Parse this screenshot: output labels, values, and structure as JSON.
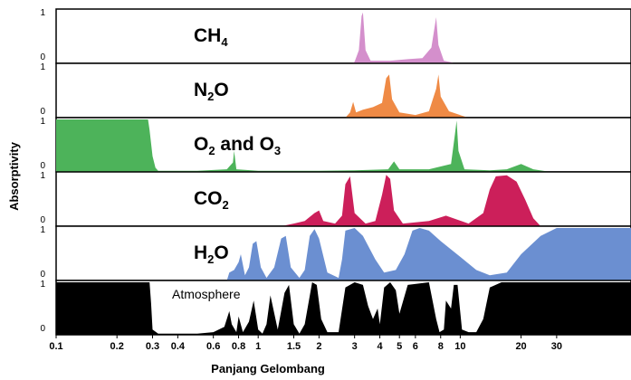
{
  "chart_data": {
    "type": "area",
    "xlabel": "Panjang Gelombang",
    "ylabel": "Absorptivity",
    "x_scale": "log",
    "xlim": [
      0.1,
      70
    ],
    "ylim": [
      0,
      1
    ],
    "x_ticks": [
      {
        "value": 0.1,
        "label": "0.1"
      },
      {
        "value": 0.2,
        "label": "0.2"
      },
      {
        "value": 0.3,
        "label": "0.3"
      },
      {
        "value": 0.4,
        "label": "0.4"
      },
      {
        "value": 0.6,
        "label": "0.6"
      },
      {
        "value": 0.8,
        "label": "0.8"
      },
      {
        "value": 1,
        "label": "1"
      },
      {
        "value": 1.5,
        "label": "1.5"
      },
      {
        "value": 2,
        "label": "2"
      },
      {
        "value": 3,
        "label": "3"
      },
      {
        "value": 4,
        "label": "4"
      },
      {
        "value": 5,
        "label": "5"
      },
      {
        "value": 6,
        "label": "6"
      },
      {
        "value": 8,
        "label": "8"
      },
      {
        "value": 10,
        "label": "10"
      },
      {
        "value": 20,
        "label": "20"
      },
      {
        "value": 30,
        "label": "30"
      }
    ],
    "y_ticks": [
      "0",
      "1"
    ],
    "series": [
      {
        "name": "CH4",
        "label_main": "CH",
        "label_sub": "4",
        "label_tail": "",
        "color": "#d48fcc",
        "points": [
          [
            2.9,
            0
          ],
          [
            3.0,
            0.03
          ],
          [
            3.15,
            0.25
          ],
          [
            3.25,
            0.9
          ],
          [
            3.3,
            0.97
          ],
          [
            3.4,
            0.25
          ],
          [
            3.6,
            0.05
          ],
          [
            4.5,
            0.05
          ],
          [
            5.5,
            0.08
          ],
          [
            6.5,
            0.1
          ],
          [
            7.2,
            0.3
          ],
          [
            7.6,
            0.88
          ],
          [
            7.8,
            0.35
          ],
          [
            8.3,
            0.05
          ],
          [
            9.0,
            0.02
          ],
          [
            9.5,
            0
          ]
        ]
      },
      {
        "name": "N2O",
        "label_main": "N",
        "label_sub": "2",
        "label_tail": "O",
        "color": "#ef8a45",
        "points": [
          [
            2.7,
            0
          ],
          [
            2.85,
            0.1
          ],
          [
            2.95,
            0.3
          ],
          [
            3.05,
            0.1
          ],
          [
            3.3,
            0.15
          ],
          [
            3.7,
            0.2
          ],
          [
            4.1,
            0.28
          ],
          [
            4.3,
            0.75
          ],
          [
            4.45,
            0.82
          ],
          [
            4.6,
            0.35
          ],
          [
            5.0,
            0.1
          ],
          [
            6.0,
            0.05
          ],
          [
            7.0,
            0.12
          ],
          [
            7.6,
            0.55
          ],
          [
            7.8,
            0.82
          ],
          [
            8.0,
            0.4
          ],
          [
            8.8,
            0.12
          ],
          [
            10.5,
            0.02
          ],
          [
            11,
            0
          ]
        ]
      },
      {
        "name": "O2 and O3",
        "label_main": "O",
        "label_sub": "2",
        "label_tail": " and O",
        "label_sub2": "3",
        "color": "#4db35a",
        "points": [
          [
            0.1,
            1
          ],
          [
            0.285,
            1
          ],
          [
            0.29,
            0.8
          ],
          [
            0.3,
            0.3
          ],
          [
            0.31,
            0.08
          ],
          [
            0.32,
            0.02
          ],
          [
            0.5,
            0.02
          ],
          [
            0.7,
            0.05
          ],
          [
            0.75,
            0.18
          ],
          [
            0.76,
            0.4
          ],
          [
            0.78,
            0.05
          ],
          [
            1.0,
            0.02
          ],
          [
            2.0,
            0.02
          ],
          [
            3.0,
            0.03
          ],
          [
            4.4,
            0.05
          ],
          [
            4.7,
            0.2
          ],
          [
            5.0,
            0.05
          ],
          [
            7.0,
            0.05
          ],
          [
            9.0,
            0.15
          ],
          [
            9.4,
            0.7
          ],
          [
            9.6,
            0.98
          ],
          [
            9.8,
            0.4
          ],
          [
            10.5,
            0.05
          ],
          [
            14,
            0.03
          ],
          [
            17,
            0.05
          ],
          [
            20,
            0.15
          ],
          [
            23,
            0.05
          ],
          [
            28,
            0
          ]
        ]
      },
      {
        "name": "CO2",
        "label_main": "CO",
        "label_sub": "2",
        "label_tail": "",
        "color": "#cc1f5a",
        "points": [
          [
            1.3,
            0
          ],
          [
            1.5,
            0.05
          ],
          [
            1.7,
            0.1
          ],
          [
            1.9,
            0.25
          ],
          [
            2.0,
            0.3
          ],
          [
            2.1,
            0.1
          ],
          [
            2.4,
            0.05
          ],
          [
            2.6,
            0.2
          ],
          [
            2.7,
            0.8
          ],
          [
            2.85,
            0.95
          ],
          [
            3.0,
            0.25
          ],
          [
            3.4,
            0.05
          ],
          [
            3.8,
            0.1
          ],
          [
            4.1,
            0.6
          ],
          [
            4.3,
            0.98
          ],
          [
            4.5,
            0.9
          ],
          [
            4.7,
            0.3
          ],
          [
            5.2,
            0.05
          ],
          [
            7.0,
            0.1
          ],
          [
            8.5,
            0.2
          ],
          [
            11,
            0.05
          ],
          [
            13,
            0.25
          ],
          [
            14,
            0.7
          ],
          [
            15,
            0.95
          ],
          [
            17,
            0.97
          ],
          [
            19,
            0.85
          ],
          [
            21,
            0.5
          ],
          [
            23,
            0.15
          ],
          [
            25,
            0
          ]
        ]
      },
      {
        "name": "H2O",
        "label_main": "H",
        "label_sub": "2",
        "label_tail": "O",
        "color": "#6b8fd1",
        "points": [
          [
            0.7,
            0
          ],
          [
            0.72,
            0.15
          ],
          [
            0.76,
            0.2
          ],
          [
            0.8,
            0.35
          ],
          [
            0.82,
            0.5
          ],
          [
            0.86,
            0.1
          ],
          [
            0.9,
            0.25
          ],
          [
            0.94,
            0.7
          ],
          [
            0.98,
            0.75
          ],
          [
            1.03,
            0.25
          ],
          [
            1.1,
            0.05
          ],
          [
            1.2,
            0.25
          ],
          [
            1.3,
            0.8
          ],
          [
            1.37,
            0.85
          ],
          [
            1.45,
            0.25
          ],
          [
            1.6,
            0.05
          ],
          [
            1.7,
            0.2
          ],
          [
            1.8,
            0.85
          ],
          [
            1.9,
            0.98
          ],
          [
            2.0,
            0.8
          ],
          [
            2.2,
            0.15
          ],
          [
            2.5,
            0.05
          ],
          [
            2.6,
            0.4
          ],
          [
            2.7,
            0.95
          ],
          [
            3.0,
            1
          ],
          [
            3.3,
            0.85
          ],
          [
            3.8,
            0.4
          ],
          [
            4.2,
            0.15
          ],
          [
            4.8,
            0.2
          ],
          [
            5.3,
            0.5
          ],
          [
            5.8,
            0.95
          ],
          [
            6.3,
            1
          ],
          [
            7.0,
            0.95
          ],
          [
            8.0,
            0.75
          ],
          [
            10,
            0.45
          ],
          [
            12,
            0.2
          ],
          [
            14,
            0.1
          ],
          [
            17,
            0.15
          ],
          [
            20,
            0.5
          ],
          [
            25,
            0.85
          ],
          [
            30,
            1
          ],
          [
            70,
            1
          ]
        ]
      },
      {
        "name": "Atmosphere",
        "label_main": "Atmosphere",
        "label_sub": "",
        "label_tail": "",
        "color": "#000000",
        "points": [
          [
            0.1,
            1
          ],
          [
            0.29,
            1
          ],
          [
            0.295,
            0.6
          ],
          [
            0.3,
            0.1
          ],
          [
            0.32,
            0.02
          ],
          [
            0.5,
            0.02
          ],
          [
            0.6,
            0.05
          ],
          [
            0.68,
            0.15
          ],
          [
            0.72,
            0.45
          ],
          [
            0.74,
            0.2
          ],
          [
            0.78,
            0.05
          ],
          [
            0.8,
            0.35
          ],
          [
            0.84,
            0.05
          ],
          [
            0.9,
            0.25
          ],
          [
            0.95,
            0.65
          ],
          [
            1.0,
            0.1
          ],
          [
            1.05,
            0.02
          ],
          [
            1.1,
            0.2
          ],
          [
            1.15,
            0.75
          ],
          [
            1.25,
            0.1
          ],
          [
            1.35,
            0.8
          ],
          [
            1.42,
            0.95
          ],
          [
            1.5,
            0.2
          ],
          [
            1.6,
            0.02
          ],
          [
            1.7,
            0.2
          ],
          [
            1.85,
            1
          ],
          [
            1.95,
            0.95
          ],
          [
            2.05,
            0.3
          ],
          [
            2.2,
            0.05
          ],
          [
            2.5,
            0.05
          ],
          [
            2.7,
            0.9
          ],
          [
            3.0,
            1
          ],
          [
            3.3,
            0.95
          ],
          [
            3.5,
            0.55
          ],
          [
            3.7,
            0.3
          ],
          [
            3.9,
            0.5
          ],
          [
            4.0,
            0.2
          ],
          [
            4.2,
            0.9
          ],
          [
            4.5,
            1
          ],
          [
            4.8,
            0.85
          ],
          [
            5.0,
            0.4
          ],
          [
            5.5,
            0.95
          ],
          [
            7.0,
            1
          ],
          [
            7.6,
            0.3
          ],
          [
            7.9,
            0.05
          ],
          [
            8.3,
            0.1
          ],
          [
            8.5,
            0.65
          ],
          [
            9.0,
            0.5
          ],
          [
            9.3,
            0.95
          ],
          [
            9.7,
            0.95
          ],
          [
            10.2,
            0.1
          ],
          [
            11,
            0.05
          ],
          [
            12,
            0.05
          ],
          [
            13,
            0.3
          ],
          [
            14,
            0.9
          ],
          [
            16,
            1
          ],
          [
            70,
            1
          ]
        ]
      }
    ]
  }
}
